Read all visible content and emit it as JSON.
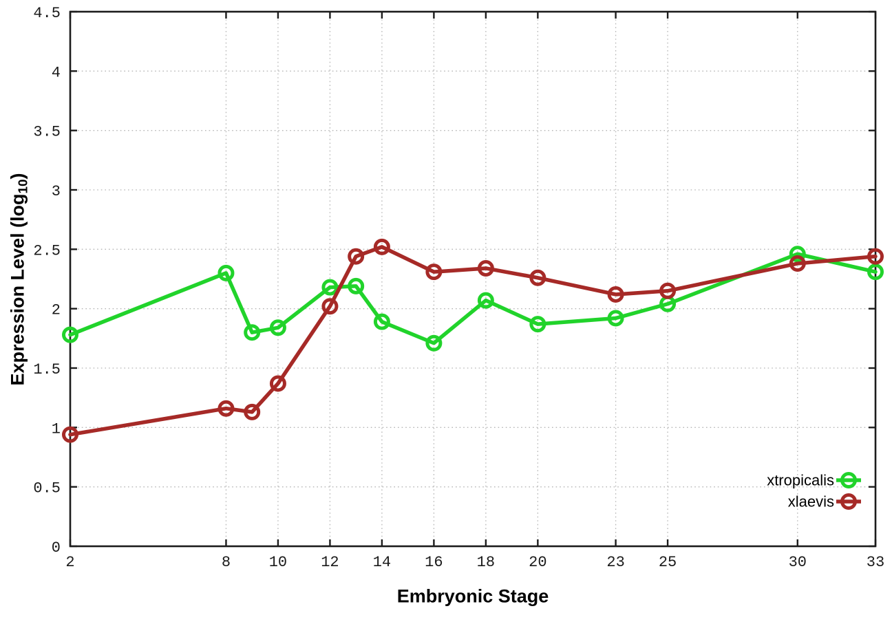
{
  "chart_data": {
    "type": "line",
    "title": "",
    "xlabel": "Embryonic Stage",
    "ylabel": {
      "prefix": "Expression Level (log",
      "subscript": "10",
      "suffix": ")"
    },
    "xlim": [
      2,
      33
    ],
    "ylim": [
      0,
      4.5
    ],
    "x_ticks": [
      2,
      8,
      10,
      12,
      14,
      16,
      18,
      20,
      23,
      25,
      30,
      33
    ],
    "y_ticks": [
      0,
      0.5,
      1,
      1.5,
      2,
      2.5,
      3,
      3.5,
      4,
      4.5
    ],
    "grid": true,
    "legend_position": "inside-right-lower",
    "marker": "open-circle",
    "x": [
      2,
      8,
      9,
      10,
      12,
      13,
      14,
      16,
      18,
      20,
      23,
      25,
      30,
      33
    ],
    "series": [
      {
        "name": "xtropicalis",
        "color": "#21d32b",
        "values": [
          1.78,
          2.3,
          1.8,
          1.84,
          2.18,
          2.19,
          1.89,
          1.71,
          2.07,
          1.87,
          1.92,
          2.04,
          2.46,
          2.31
        ]
      },
      {
        "name": "xlaevis",
        "color": "#a62a27",
        "values": [
          0.94,
          1.16,
          1.13,
          1.37,
          2.02,
          2.44,
          2.52,
          2.31,
          2.34,
          2.26,
          2.12,
          2.15,
          2.38,
          2.44
        ]
      }
    ],
    "style": {
      "background": "#ffffff",
      "border_color": "#1c1c1c",
      "grid_color": "#b5b5b5",
      "tick_label_color": "#1a1a1a"
    }
  }
}
